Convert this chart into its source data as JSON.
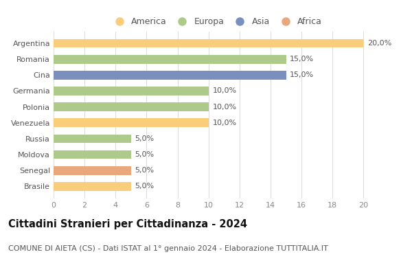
{
  "countries": [
    "Argentina",
    "Romania",
    "Cina",
    "Germania",
    "Polonia",
    "Venezuela",
    "Russia",
    "Moldova",
    "Senegal",
    "Brasile"
  ],
  "values": [
    20.0,
    15.0,
    15.0,
    10.0,
    10.0,
    10.0,
    5.0,
    5.0,
    5.0,
    5.0
  ],
  "continents": [
    "America",
    "Europa",
    "Asia",
    "Europa",
    "Europa",
    "America",
    "Europa",
    "Europa",
    "Africa",
    "America"
  ],
  "colors": {
    "America": "#FACD7A",
    "Europa": "#AECA8A",
    "Asia": "#7B8FBF",
    "Africa": "#E8A87C"
  },
  "legend_order": [
    "America",
    "Europa",
    "Asia",
    "Africa"
  ],
  "title": "Cittadini Stranieri per Cittadinanza - 2024",
  "subtitle": "COMUNE DI AIETA (CS) - Dati ISTAT al 1° gennaio 2024 - Elaborazione TUTTITALIA.IT",
  "xlim": [
    0,
    21
  ],
  "xticks": [
    0,
    2,
    4,
    6,
    8,
    10,
    12,
    14,
    16,
    18,
    20
  ],
  "background_color": "#ffffff",
  "plot_bg_color": "#ffffff",
  "bar_height": 0.55,
  "title_fontsize": 10.5,
  "subtitle_fontsize": 8,
  "tick_fontsize": 8,
  "label_fontsize": 8,
  "legend_fontsize": 9
}
